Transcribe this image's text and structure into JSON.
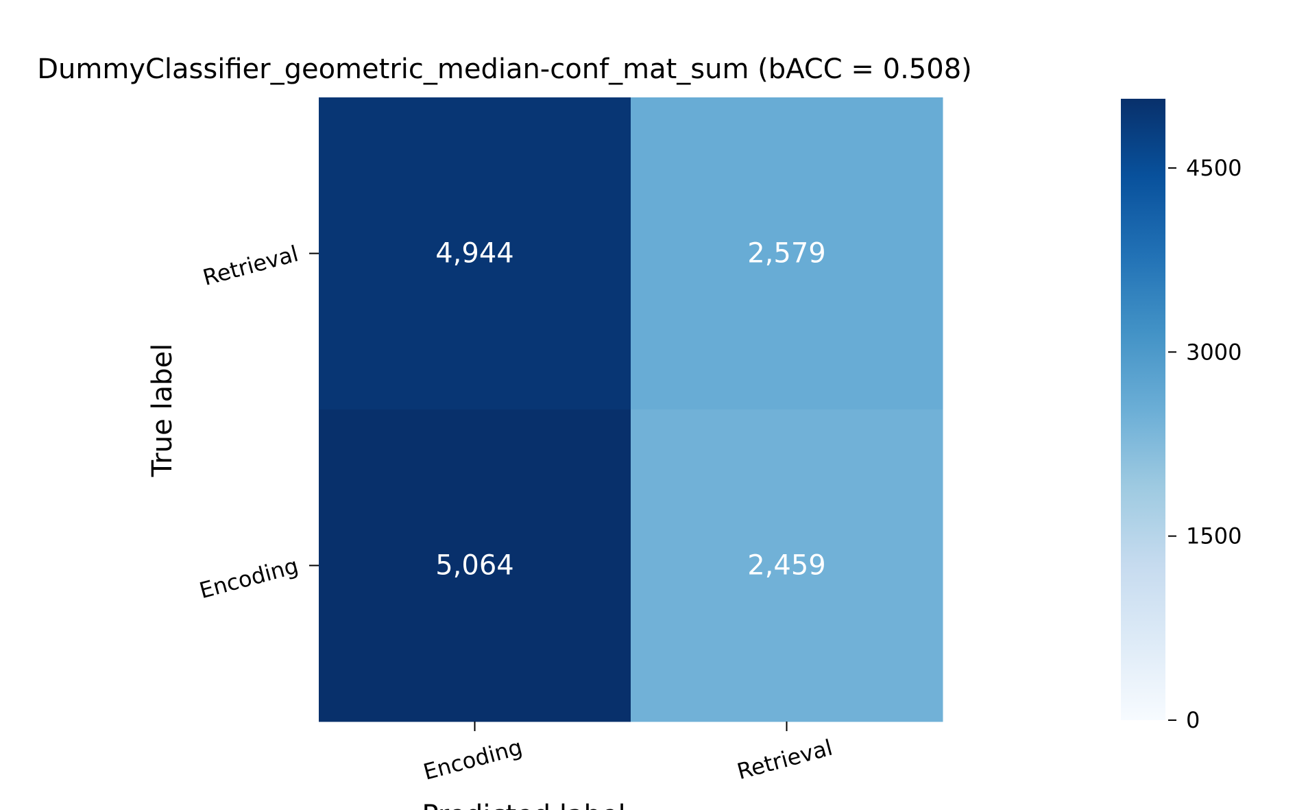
{
  "chart_data": {
    "type": "heatmap",
    "title": "DummyClassifier_geometric_median-conf_mat_sum (bACC = 0.508)",
    "xlabel": "Predicted label",
    "ylabel": "True label",
    "x_categories": [
      "Encoding",
      "Retrieval"
    ],
    "y_categories": [
      "Retrieval",
      "Encoding"
    ],
    "values": [
      [
        4944,
        2579
      ],
      [
        5064,
        2459
      ]
    ],
    "cell_labels": [
      [
        "4,944",
        "2,579"
      ],
      [
        "5,064",
        "2,459"
      ]
    ],
    "colorbar": {
      "min": 0,
      "max": 5064,
      "ticks": [
        0,
        1500,
        3000,
        4500
      ],
      "tick_labels": [
        "0",
        "1500",
        "3000",
        "4500"
      ],
      "colormap": "Blues"
    },
    "grid": false
  }
}
